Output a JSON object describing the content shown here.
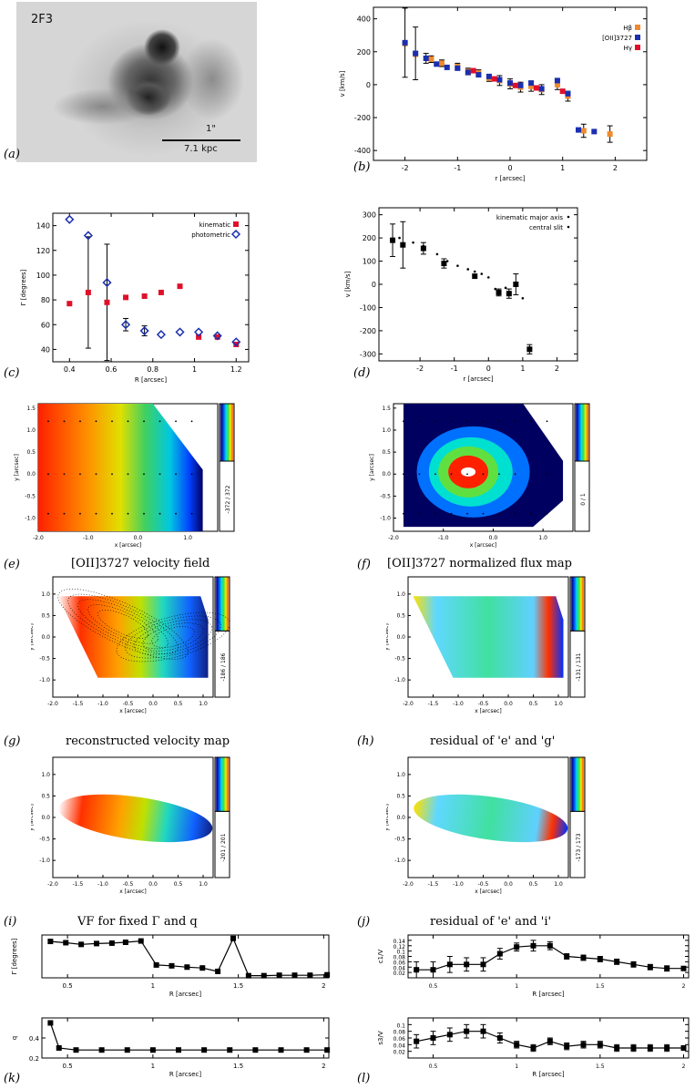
{
  "image_a": {
    "tag": "2F3",
    "scale_label": "1\"",
    "scale_kpc": "7.1 kpc"
  },
  "panel_labels": [
    "(a)",
    "(b)",
    "(c)",
    "(d)",
    "(e)",
    "(f)",
    "(g)",
    "(h)",
    "(i)",
    "(j)",
    "(k)",
    "(l)"
  ],
  "captions": {
    "e": "[OII]3727 velocity field",
    "f": "[OII]3727 normalized flux map",
    "g": "reconstructed velocity map",
    "h": "residual of 'e' and 'g'",
    "i": "VF for fixed Γ and q",
    "j": "residual of 'e' and 'i'"
  },
  "colorbar_labels": {
    "e": "-372 / 372",
    "f": "0 / 1",
    "g": "-186 / 186",
    "h": "-131 / 131",
    "i": "-201 / 201",
    "j": "-173 / 173"
  },
  "colors": {
    "red_marker": "#e0102a",
    "blue_marker": "#1a2fb0",
    "orange": "#f08a2c"
  },
  "chart_data": [
    {
      "id": "b",
      "type": "scatter",
      "xlabel": "r [arcsec]",
      "ylabel": "v [km/s]",
      "xlim": [
        -2.6,
        2.6
      ],
      "ylim": [
        -460,
        470
      ],
      "xticks": [
        -2,
        -1,
        0,
        1,
        2
      ],
      "yticks": [
        -400,
        -200,
        0,
        200,
        400
      ],
      "legend_position": "top-right",
      "series": [
        {
          "name": "Hβ",
          "color": "#f08a2c",
          "x": [
            -2.0,
            -1.8,
            -1.5,
            -1.3,
            -1.0,
            -0.8,
            -0.6,
            -0.4,
            -0.2,
            0.0,
            0.2,
            0.4,
            0.6,
            0.9,
            1.1,
            1.4,
            1.9
          ],
          "y": [
            250,
            185,
            155,
            130,
            110,
            80,
            70,
            40,
            25,
            5,
            -15,
            -10,
            -30,
            0,
            -70,
            -280,
            -300
          ],
          "err": [
            0,
            0,
            20,
            20,
            20,
            20,
            20,
            20,
            30,
            30,
            30,
            30,
            30,
            30,
            30,
            40,
            50
          ]
        },
        {
          "name": "[OII]3727",
          "color": "#1a2fb0",
          "x": [
            -2.0,
            -1.8,
            -1.6,
            -1.4,
            -1.2,
            -1.0,
            -0.8,
            -0.6,
            -0.4,
            -0.2,
            0.0,
            0.2,
            0.4,
            0.6,
            0.9,
            1.1,
            1.3,
            1.6
          ],
          "y": [
            255,
            190,
            160,
            125,
            105,
            100,
            75,
            60,
            50,
            30,
            10,
            -5,
            10,
            -25,
            25,
            -55,
            -275,
            -285
          ],
          "err": [
            210,
            160,
            30,
            0,
            0,
            0,
            0,
            0,
            0,
            0,
            0,
            0,
            0,
            0,
            0,
            0,
            0,
            0
          ]
        },
        {
          "name": "Hγ",
          "color": "#e0102a",
          "x": [
            -0.7,
            -0.3,
            0.1,
            0.5,
            1.0
          ],
          "y": [
            85,
            35,
            -5,
            -20,
            -40
          ],
          "err": [
            0,
            0,
            0,
            0,
            0
          ]
        }
      ]
    },
    {
      "id": "c",
      "type": "scatter",
      "xlabel": "R [arcsec]",
      "ylabel": "Γ [degrees]",
      "xlim": [
        0.32,
        1.26
      ],
      "ylim": [
        30,
        150
      ],
      "xticks": [
        0.4,
        0.6,
        0.8,
        1.0,
        1.2
      ],
      "yticks": [
        40,
        60,
        80,
        100,
        120,
        140
      ],
      "legend_position": "top-right",
      "series": [
        {
          "name": "kinematic",
          "color": "#e0102a",
          "marker": "square",
          "x": [
            0.4,
            0.49,
            0.58,
            0.67,
            0.76,
            0.84,
            0.93,
            1.02,
            1.11,
            1.2
          ],
          "y": [
            77,
            86,
            78,
            82,
            83,
            86,
            91,
            50,
            50,
            44
          ],
          "err": [
            0,
            45,
            47,
            0,
            0,
            0,
            0,
            0,
            0,
            0
          ]
        },
        {
          "name": "photometric",
          "color": "#1a2fb0",
          "marker": "diamond",
          "x": [
            0.4,
            0.49,
            0.58,
            0.67,
            0.76,
            0.84,
            0.93,
            1.02,
            1.11,
            1.2
          ],
          "y": [
            145,
            132,
            94,
            60,
            55,
            52,
            54,
            54,
            51,
            46
          ],
          "err": [
            0,
            0,
            0,
            5,
            4,
            0,
            0,
            0,
            0,
            0
          ]
        }
      ]
    },
    {
      "id": "d",
      "type": "scatter",
      "xlabel": "r [arcsec]",
      "ylabel": "v [km/s]",
      "xlim": [
        -3.2,
        2.6
      ],
      "ylim": [
        -330,
        330
      ],
      "xticks": [
        -2,
        -1,
        0,
        1,
        2
      ],
      "yticks": [
        -300,
        -200,
        -100,
        0,
        100,
        200,
        300
      ],
      "legend_position": "top-right",
      "series": [
        {
          "name": "kinematic major axis",
          "color": "#000000",
          "x": [
            -2.6,
            -2.2,
            -1.9,
            -1.5,
            -1.2,
            -0.9,
            -0.6,
            -0.4,
            -0.2,
            0.0,
            0.2,
            0.5,
            0.8,
            1.0
          ],
          "y": [
            200,
            180,
            165,
            130,
            100,
            80,
            65,
            55,
            45,
            30,
            -20,
            -15,
            -5,
            -60
          ],
          "err": [
            0,
            0,
            0,
            0,
            0,
            0,
            0,
            0,
            0,
            0,
            0,
            0,
            0,
            0
          ]
        },
        {
          "name": "central slit",
          "color": "#000000",
          "x": [
            -2.8,
            -2.5,
            -1.9,
            -1.3,
            -0.4,
            0.3,
            0.6,
            0.8,
            1.2
          ],
          "y": [
            190,
            170,
            155,
            90,
            35,
            -35,
            -40,
            0,
            -280
          ],
          "err": [
            70,
            100,
            25,
            20,
            0,
            15,
            20,
            45,
            20
          ]
        }
      ]
    },
    {
      "id": "k1",
      "type": "line",
      "xlabel": "R [arcsec]",
      "ylabel": "Γ [degrees]",
      "xlim": [
        0.35,
        2.03
      ],
      "ylim": [
        0,
        1
      ],
      "xticks": [
        0.5,
        1.0,
        1.5,
        2.0
      ],
      "x": [
        0.4,
        0.49,
        0.58,
        0.67,
        0.76,
        0.84,
        0.93,
        1.02,
        1.11,
        1.2,
        1.29,
        1.38,
        1.47,
        1.56,
        1.65,
        1.74,
        1.83,
        1.92,
        2.02
      ],
      "y": [
        0.85,
        0.82,
        0.78,
        0.8,
        0.81,
        0.83,
        0.86,
        0.3,
        0.28,
        0.25,
        0.23,
        0.15,
        0.92,
        0.05,
        0.05,
        0.06,
        0.06,
        0.06,
        0.07
      ]
    },
    {
      "id": "k2",
      "type": "line",
      "xlabel": "R [arcsec]",
      "ylabel": "q",
      "xlim": [
        0.35,
        2.03
      ],
      "ylim": [
        0.2,
        0.6
      ],
      "xticks": [
        0.5,
        1.0,
        1.5,
        2.0
      ],
      "yticks": [
        0.2,
        0.4
      ],
      "x": [
        0.4,
        0.45,
        0.55,
        0.7,
        0.85,
        1.0,
        1.15,
        1.3,
        1.45,
        1.6,
        1.75,
        1.9,
        2.02
      ],
      "y": [
        0.55,
        0.3,
        0.28,
        0.28,
        0.28,
        0.28,
        0.28,
        0.28,
        0.28,
        0.28,
        0.28,
        0.28,
        0.28
      ]
    },
    {
      "id": "l1",
      "type": "line",
      "xlabel": "R [arcsec]",
      "ylabel": "c1/V",
      "xlim": [
        0.35,
        2.03
      ],
      "ylim": [
        0.0,
        0.16
      ],
      "xticks": [
        0.5,
        1.0,
        1.5,
        2.0
      ],
      "yticks": [
        0.02,
        0.04,
        0.06,
        0.08,
        0.1,
        0.12,
        0.14
      ],
      "x": [
        0.4,
        0.5,
        0.6,
        0.7,
        0.8,
        0.9,
        1.0,
        1.1,
        1.2,
        1.3,
        1.4,
        1.5,
        1.6,
        1.7,
        1.8,
        1.9,
        2.0
      ],
      "y": [
        0.03,
        0.03,
        0.05,
        0.05,
        0.05,
        0.09,
        0.115,
        0.12,
        0.12,
        0.08,
        0.075,
        0.07,
        0.06,
        0.05,
        0.04,
        0.035,
        0.035
      ],
      "err": [
        0.03,
        0.03,
        0.03,
        0.025,
        0.025,
        0.02,
        0.015,
        0.02,
        0.015,
        0.01,
        0.01,
        0.01,
        0.01,
        0.01,
        0.01,
        0.01,
        0
      ]
    },
    {
      "id": "l2",
      "type": "line",
      "xlabel": "R [arcsec]",
      "ylabel": "s3/V",
      "xlim": [
        0.35,
        2.03
      ],
      "ylim": [
        0.0,
        0.12
      ],
      "xticks": [
        0.5,
        1.0,
        1.5,
        2.0
      ],
      "yticks": [
        0.02,
        0.04,
        0.06,
        0.08,
        0.1
      ],
      "x": [
        0.4,
        0.5,
        0.6,
        0.7,
        0.8,
        0.9,
        1.0,
        1.1,
        1.2,
        1.3,
        1.4,
        1.5,
        1.6,
        1.7,
        1.8,
        1.9,
        2.0
      ],
      "y": [
        0.05,
        0.06,
        0.07,
        0.08,
        0.08,
        0.06,
        0.04,
        0.03,
        0.05,
        0.035,
        0.04,
        0.04,
        0.03,
        0.03,
        0.03,
        0.03,
        0.03
      ],
      "err": [
        0.02,
        0.02,
        0.02,
        0.02,
        0.02,
        0.015,
        0.01,
        0.01,
        0.01,
        0.01,
        0.01,
        0.01,
        0.01,
        0.01,
        0.01,
        0.01,
        0
      ]
    }
  ]
}
